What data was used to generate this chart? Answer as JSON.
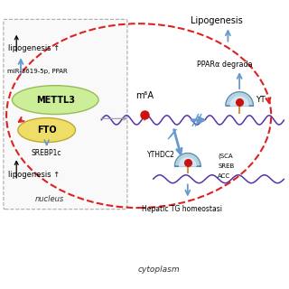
{
  "nucleus_label": "nucleus",
  "cytoplasm_label": "cytoplasm",
  "mettl3_label": "METTL3",
  "fto_label": "FTO",
  "srebp1c_label": "SREBP1c",
  "m6a_label": "m⁶A",
  "ythdc2_label": "YTHDC2",
  "ytx_label": "YT",
  "lipogenesis_left1": "lipogenesis ↑",
  "lipogenesis_left2": "lipogenesis ↑",
  "mir_label": "miR-3619-5p, PPAR",
  "lipogenesis_right": "Lipogenesis",
  "ppara_label": "PPARα degrada",
  "hepatic_label": "Hepatic TG homeostasi",
  "wave_color": "#5533aa",
  "red_dot_color": "#cc1111",
  "arrow_blue": "#6699cc",
  "dashed_red": "#dd2222",
  "mettl3_fill": "#ccee99",
  "mettl3_edge": "#99bb55",
  "fto_fill": "#eedd66",
  "fto_edge": "#bbaa33",
  "ythdc_fill": "#aaccdd",
  "ythdc_edge": "#5588aa",
  "bg": "white"
}
